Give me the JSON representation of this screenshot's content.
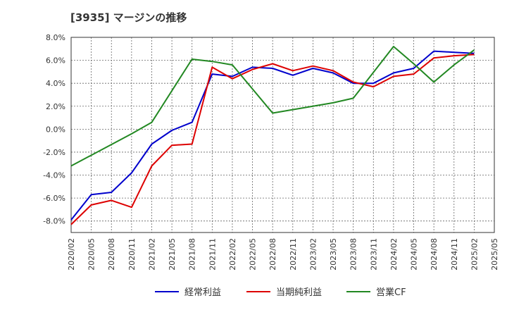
{
  "chart_data": {
    "type": "line",
    "title": "[3935]  マージンの推移",
    "xlabel": "",
    "ylabel": "",
    "ylim": [
      -9.0,
      8.0
    ],
    "yticks": [
      8.0,
      6.0,
      4.0,
      2.0,
      0.0,
      -2.0,
      -4.0,
      -6.0,
      -8.0
    ],
    "ytick_labels": [
      "8.0%",
      "6.0%",
      "4.0%",
      "2.0%",
      "0.0%",
      "-2.0%",
      "-4.0%",
      "-6.0%",
      "-8.0%"
    ],
    "xtick_labels": [
      "2020/02",
      "2020/05",
      "2020/08",
      "2020/11",
      "2021/02",
      "2021/05",
      "2021/08",
      "2021/11",
      "2022/02",
      "2022/05",
      "2022/08",
      "2022/11",
      "2023/02",
      "2023/05",
      "2023/08",
      "2023/11",
      "2024/02",
      "2024/05",
      "2024/08",
      "2024/11",
      "2025/02",
      "2025/05"
    ],
    "grid": true,
    "legend": "bottom",
    "series": [
      {
        "name": "経常利益",
        "color": "#0000cc",
        "x": [
          "2020/02",
          "2020/05",
          "2020/08",
          "2020/11",
          "2021/02",
          "2021/05",
          "2021/08",
          "2021/11",
          "2022/02",
          "2022/05",
          "2022/08",
          "2022/11",
          "2023/02",
          "2023/05",
          "2023/08",
          "2023/11",
          "2024/02",
          "2024/05",
          "2024/08",
          "2024/11",
          "2025/02"
        ],
        "values": [
          -7.9,
          -5.7,
          -5.5,
          -3.8,
          -1.3,
          -0.1,
          0.6,
          4.8,
          4.6,
          5.4,
          5.3,
          4.7,
          5.3,
          4.9,
          4.0,
          4.0,
          4.9,
          5.3,
          6.8,
          6.7,
          6.6
        ]
      },
      {
        "name": "当期純利益",
        "color": "#dd0000",
        "x": [
          "2020/02",
          "2020/05",
          "2020/08",
          "2020/11",
          "2021/02",
          "2021/05",
          "2021/08",
          "2021/11",
          "2022/02",
          "2022/05",
          "2022/08",
          "2022/11",
          "2023/02",
          "2023/05",
          "2023/08",
          "2023/11",
          "2024/02",
          "2024/05",
          "2024/08",
          "2024/11",
          "2025/02"
        ],
        "values": [
          -8.3,
          -6.6,
          -6.2,
          -6.8,
          -3.2,
          -1.4,
          -1.3,
          5.4,
          4.4,
          5.2,
          5.7,
          5.1,
          5.5,
          5.1,
          4.1,
          3.7,
          4.6,
          4.8,
          6.2,
          6.4,
          6.5
        ]
      },
      {
        "name": "営業CF",
        "color": "#228822",
        "x": [
          "2020/02",
          "2020/11",
          "2021/02",
          "2021/08",
          "2021/11",
          "2022/02",
          "2022/08",
          "2023/05",
          "2023/08",
          "2024/02",
          "2024/05",
          "2024/08",
          "2024/11",
          "2025/02"
        ],
        "values": [
          -3.2,
          -0.4,
          0.6,
          6.1,
          5.9,
          5.6,
          1.4,
          2.3,
          2.7,
          7.2,
          5.7,
          4.1,
          5.6,
          6.9
        ]
      }
    ]
  }
}
